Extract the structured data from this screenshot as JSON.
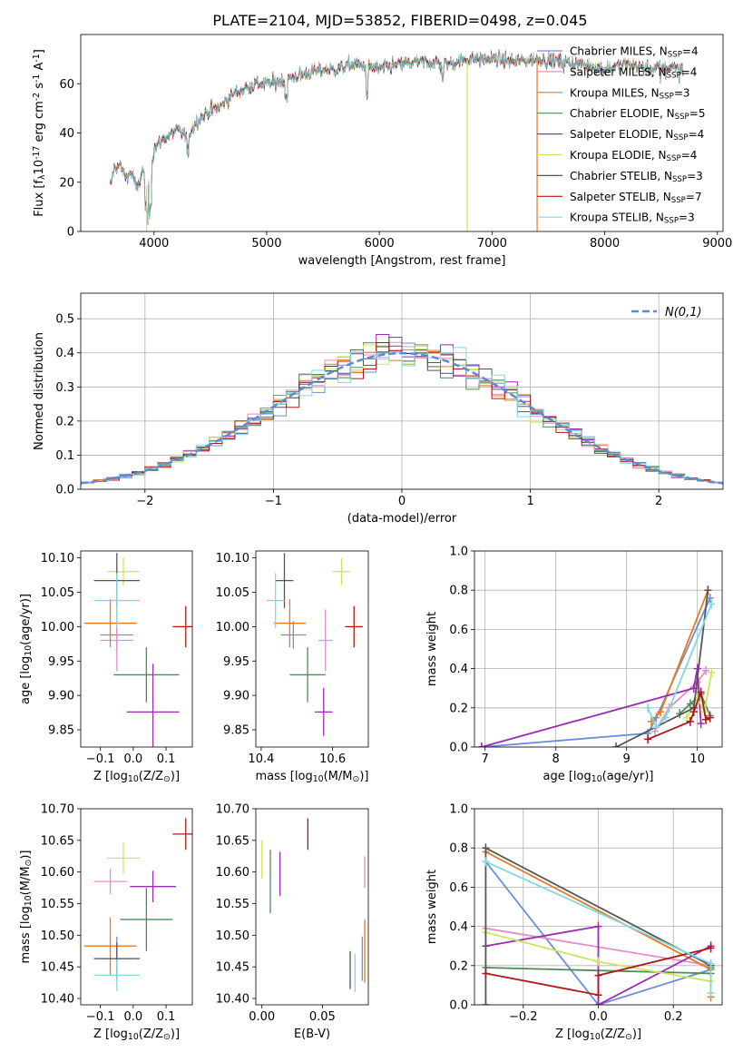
{
  "figure": {
    "title": "PLATE=2104, MJD=53852, FIBERID=0498, z=0.045"
  },
  "colors": {
    "chabrier_miles": "#6a8fdc",
    "salpeter_miles": "#e58cc9",
    "kroupa_miles": "#e8791f",
    "chabrier_elodie": "#4e8c55",
    "salpeter_elodie": "#9b2ab5",
    "kroupa_elodie": "#cce55a",
    "chabrier_stelib": "#555555",
    "salpeter_stelib": "#b01717",
    "kroupa_stelib": "#7fd9e0",
    "normal": "#5b8bd6"
  },
  "chart_data": [
    {
      "type": "line",
      "title": "PLATE=2104, MJD=53852, FIBERID=0498, z=0.045",
      "xlabel": "wavelength [Angstrom, rest frame]",
      "ylabel": "Flux [f_λ 10^-17 erg cm^-2 s^-1 A^-1]",
      "xlim": [
        3350,
        9050
      ],
      "ylim": [
        0,
        80
      ],
      "xticks": [
        4000,
        5000,
        6000,
        7000,
        8000,
        9000
      ],
      "yticks": [
        0,
        20,
        40,
        60
      ],
      "legend_position": "upper-right",
      "spectrum_envelope": {
        "x": [
          3610,
          3650,
          3700,
          3750,
          3800,
          3850,
          3900,
          3950,
          4000,
          4100,
          4200,
          4300,
          4400,
          4500,
          4600,
          4700,
          4800,
          4900,
          5000,
          5200,
          5400,
          5600,
          5800,
          6000,
          6200,
          6400,
          6600,
          6800,
          7000,
          7200,
          7400,
          7600,
          7800,
          8000,
          8200,
          8400,
          8600,
          8700
        ],
        "y": [
          18,
          26,
          27,
          22,
          24,
          17,
          25,
          16,
          34,
          38,
          41,
          39,
          46,
          49,
          51,
          56,
          58,
          60,
          60,
          62,
          65,
          66,
          68,
          66,
          68,
          69,
          68,
          70,
          70,
          69,
          70,
          69,
          68,
          66,
          68,
          66,
          67,
          66
        ]
      },
      "spikes": [
        {
          "x": 3935,
          "series": "Kroupa ELODIE"
        },
        {
          "x": 6780,
          "series": "Kroupa ELODIE"
        },
        {
          "x": 7400,
          "series": "Kroupa MILES"
        }
      ],
      "series": [
        {
          "key": "chabrier_miles",
          "label": "Chabrier MILES, N",
          "sub": "SSP",
          "tail": "=4"
        },
        {
          "key": "salpeter_miles",
          "label": "Salpeter MILES, N",
          "sub": "SSP",
          "tail": "=4"
        },
        {
          "key": "kroupa_miles",
          "label": "Kroupa MILES, N",
          "sub": "SSP",
          "tail": "=3"
        },
        {
          "key": "chabrier_elodie",
          "label": "Chabrier ELODIE, N",
          "sub": "SSP",
          "tail": "=5"
        },
        {
          "key": "salpeter_elodie",
          "label": "Salpeter ELODIE, N",
          "sub": "SSP",
          "tail": "=4"
        },
        {
          "key": "kroupa_elodie",
          "label": "Kroupa ELODIE, N",
          "sub": "SSP",
          "tail": "=4"
        },
        {
          "key": "chabrier_stelib",
          "label": "Chabrier STELIB, N",
          "sub": "SSP",
          "tail": "=3"
        },
        {
          "key": "salpeter_stelib",
          "label": "Salpeter STELIB, N",
          "sub": "SSP",
          "tail": "=7"
        },
        {
          "key": "kroupa_stelib",
          "label": "Kroupa STELIB, N",
          "sub": "SSP",
          "tail": "=3"
        }
      ]
    },
    {
      "type": "line",
      "xlabel": "(data-model)/error",
      "ylabel": "Normed distribution",
      "xlim": [
        -2.5,
        2.5
      ],
      "ylim": [
        0,
        0.575
      ],
      "xticks": [
        -2,
        -1,
        0,
        1,
        2
      ],
      "yticks": [
        0.0,
        0.1,
        0.2,
        0.3,
        0.4,
        0.5
      ],
      "grid": true,
      "legend_position": "upper-right",
      "normal_label": "N(0,1)",
      "histograms": "step histograms of the residual distribution, one per model, bin width 0.1, scattered around N(0,1)"
    },
    {
      "type": "scatter",
      "xlabel": "Z [log10(Z/Z⊙)]",
      "ylabel": "age [log10(age/yr)]",
      "xlim": [
        -0.16,
        0.18
      ],
      "ylim": [
        9.825,
        10.11
      ],
      "xticks": [
        -0.1,
        0.0,
        0.1
      ],
      "yticks": [
        9.85,
        9.9,
        9.95,
        10.0,
        10.05,
        10.1
      ],
      "points": [
        {
          "series": "chabrier_miles",
          "x": -0.05,
          "xerr": 0.05,
          "y": 9.988,
          "yerr": 0.02
        },
        {
          "series": "salpeter_miles",
          "x": -0.05,
          "xerr": 0.05,
          "y": 9.98,
          "yerr": 0.045
        },
        {
          "series": "kroupa_miles",
          "x": -0.07,
          "xerr": 0.08,
          "y": 10.005,
          "yerr": 0.035
        },
        {
          "series": "chabrier_elodie",
          "x": 0.04,
          "xerr": 0.1,
          "y": 9.93,
          "yerr": 0.04
        },
        {
          "series": "salpeter_elodie",
          "x": 0.06,
          "xerr": 0.08,
          "y": 9.876,
          "yerr": 0.07
        },
        {
          "series": "kroupa_elodie",
          "x": -0.03,
          "xerr": 0.05,
          "y": 10.08,
          "yerr": 0.02
        },
        {
          "series": "chabrier_stelib",
          "x": -0.05,
          "xerr": 0.07,
          "y": 10.067,
          "yerr": 0.04
        },
        {
          "series": "salpeter_stelib",
          "x": 0.16,
          "xerr": 0.04,
          "y": 10.0,
          "yerr": 0.03
        },
        {
          "series": "kroupa_stelib",
          "x": -0.05,
          "xerr": 0.07,
          "y": 10.038,
          "yerr": 0.04
        }
      ]
    },
    {
      "type": "scatter",
      "xlabel": "mass [log10(M/M⊙)]",
      "ylabel": "",
      "xlim": [
        10.385,
        10.7
      ],
      "ylim": [
        9.825,
        10.11
      ],
      "xticks": [
        10.4,
        10.6
      ],
      "yticks": [
        9.85,
        9.9,
        9.95,
        10.0,
        10.05,
        10.1
      ],
      "points": [
        {
          "series": "chabrier_miles",
          "x": 10.49,
          "xerr": 0.035,
          "y": 9.988,
          "yerr": 0.02
        },
        {
          "series": "salpeter_miles",
          "x": 10.58,
          "xerr": 0.02,
          "y": 9.98,
          "yerr": 0.045
        },
        {
          "series": "kroupa_miles",
          "x": 10.48,
          "xerr": 0.045,
          "y": 10.005,
          "yerr": 0.035
        },
        {
          "series": "chabrier_elodie",
          "x": 10.53,
          "xerr": 0.05,
          "y": 9.93,
          "yerr": 0.04
        },
        {
          "series": "salpeter_elodie",
          "x": 10.575,
          "xerr": 0.025,
          "y": 9.876,
          "yerr": 0.035
        },
        {
          "series": "kroupa_elodie",
          "x": 10.625,
          "xerr": 0.025,
          "y": 10.08,
          "yerr": 0.02
        },
        {
          "series": "chabrier_stelib",
          "x": 10.465,
          "xerr": 0.025,
          "y": 10.067,
          "yerr": 0.04
        },
        {
          "series": "salpeter_stelib",
          "x": 10.66,
          "xerr": 0.025,
          "y": 10.0,
          "yerr": 0.03
        },
        {
          "series": "kroupa_stelib",
          "x": 10.44,
          "xerr": 0.025,
          "y": 10.038,
          "yerr": 0.04
        }
      ]
    },
    {
      "type": "line",
      "xlabel": "age [log10(age/yr)]",
      "ylabel": "mass weight",
      "xlim": [
        6.85,
        10.35
      ],
      "ylim": [
        0,
        1.0
      ],
      "xticks": [
        7,
        8,
        9,
        10
      ],
      "yticks": [
        0.0,
        0.2,
        0.4,
        0.6,
        0.8,
        1.0
      ],
      "grid": true,
      "series": [
        {
          "key": "chabrier_miles",
          "x": [
            6.95,
            9.3,
            9.42,
            10.18
          ],
          "y": [
            0.0,
            0.07,
            0.15,
            0.76
          ]
        },
        {
          "key": "salpeter_miles",
          "x": [
            9.4,
            9.6,
            10.0,
            10.12
          ],
          "y": [
            0.08,
            0.2,
            0.33,
            0.39
          ]
        },
        {
          "key": "kroupa_miles",
          "x": [
            9.35,
            9.48,
            10.15
          ],
          "y": [
            0.13,
            0.18,
            0.8
          ]
        },
        {
          "key": "chabrier_elodie",
          "x": [
            9.75,
            9.9,
            10.05,
            10.18
          ],
          "y": [
            0.17,
            0.22,
            0.27,
            0.16
          ]
        },
        {
          "key": "salpeter_elodie",
          "x": [
            6.95,
            9.95,
            10.0,
            10.05
          ],
          "y": [
            0.0,
            0.3,
            0.4,
            0.12
          ]
        },
        {
          "key": "kroupa_elodie",
          "x": [
            9.85,
            10.0,
            10.1,
            10.2
          ],
          "y": [
            0.15,
            0.25,
            0.18,
            0.38
          ]
        },
        {
          "key": "chabrier_stelib",
          "x": [
            8.85,
            9.95,
            10.15
          ],
          "y": [
            0.0,
            0.2,
            0.8
          ]
        },
        {
          "key": "salpeter_stelib",
          "x": [
            9.3,
            9.9,
            9.95,
            10.05,
            10.12,
            10.18
          ],
          "y": [
            0.04,
            0.13,
            0.18,
            0.28,
            0.14,
            0.15
          ]
        },
        {
          "key": "kroupa_stelib",
          "x": [
            9.3,
            9.42,
            9.55,
            10.2
          ],
          "y": [
            0.2,
            0.1,
            0.15,
            0.73
          ]
        }
      ]
    },
    {
      "type": "scatter",
      "xlabel": "Z [log10(Z/Z⊙)]",
      "ylabel": "mass [log10(M/M⊙)]",
      "xlim": [
        -0.16,
        0.18
      ],
      "ylim": [
        10.39,
        10.7
      ],
      "xticks": [
        -0.1,
        0.0,
        0.1
      ],
      "yticks": [
        10.4,
        10.45,
        10.5,
        10.55,
        10.6,
        10.65,
        10.7
      ],
      "points": [
        {
          "series": "chabrier_miles",
          "x": -0.05,
          "xerr": 0.05,
          "y": 10.463,
          "yerr": 0.035
        },
        {
          "series": "salpeter_miles",
          "x": -0.07,
          "xerr": 0.05,
          "y": 10.585,
          "yerr": 0.02
        },
        {
          "series": "kroupa_miles",
          "x": -0.07,
          "xerr": 0.08,
          "y": 10.483,
          "yerr": 0.045
        },
        {
          "series": "chabrier_elodie",
          "x": 0.04,
          "xerr": 0.08,
          "y": 10.525,
          "yerr": 0.05
        },
        {
          "series": "salpeter_elodie",
          "x": 0.06,
          "xerr": 0.07,
          "y": 10.577,
          "yerr": 0.025
        },
        {
          "series": "kroupa_elodie",
          "x": -0.03,
          "xerr": 0.05,
          "y": 10.622,
          "yerr": 0.025
        },
        {
          "series": "chabrier_stelib",
          "x": -0.05,
          "xerr": 0.07,
          "y": 10.463,
          "yerr": 0.025
        },
        {
          "series": "salpeter_stelib",
          "x": 0.16,
          "xerr": 0.04,
          "y": 10.66,
          "yerr": 0.025
        },
        {
          "series": "kroupa_stelib",
          "x": -0.05,
          "xerr": 0.07,
          "y": 10.437,
          "yerr": 0.025
        }
      ]
    },
    {
      "type": "scatter",
      "xlabel": "E(B-V)",
      "ylabel": "",
      "xlim": [
        -0.005,
        0.088
      ],
      "ylim": [
        10.39,
        10.7
      ],
      "xticks": [
        0.0,
        0.05
      ],
      "yticks": [
        10.4,
        10.45,
        10.5,
        10.55,
        10.6,
        10.65,
        10.7
      ],
      "points": [
        {
          "series": "chabrier_miles",
          "x": 0.083,
          "y": 10.463,
          "yerr": 0.035
        },
        {
          "series": "salpeter_miles",
          "x": 0.085,
          "y": 10.6,
          "yerr": 0.025
        },
        {
          "series": "kroupa_miles",
          "x": 0.085,
          "y": 10.475,
          "yerr": 0.05
        },
        {
          "series": "chabrier_elodie",
          "x": 0.007,
          "y": 10.585,
          "yerr": 0.05
        },
        {
          "series": "salpeter_elodie",
          "x": 0.015,
          "y": 10.597,
          "yerr": 0.035
        },
        {
          "series": "kroupa_elodie",
          "x": 0.0,
          "y": 10.62,
          "yerr": 0.03
        },
        {
          "series": "chabrier_stelib",
          "x": 0.073,
          "y": 10.445,
          "yerr": 0.03
        },
        {
          "series": "salpeter_stelib",
          "x": 0.038,
          "y": 10.66,
          "yerr": 0.025
        },
        {
          "series": "kroupa_stelib",
          "x": 0.077,
          "y": 10.44,
          "yerr": 0.03
        }
      ]
    },
    {
      "type": "line",
      "xlabel": "Z [log10(Z/Z⊙)]",
      "ylabel": "mass weight",
      "xlim": [
        -0.33,
        0.33
      ],
      "ylim": [
        0,
        1.0
      ],
      "xticks": [
        -0.2,
        0.0,
        0.2
      ],
      "yticks": [
        0.0,
        0.2,
        0.4,
        0.6,
        0.8,
        1.0
      ],
      "grid": true,
      "series": [
        {
          "key": "chabrier_miles",
          "x": [
            -0.3,
            0.0,
            0.3
          ],
          "y": [
            0.73,
            0.0,
            0.18
          ]
        },
        {
          "key": "salpeter_miles",
          "x": [
            -0.3,
            0.3
          ],
          "y": [
            0.39,
            0.2
          ]
        },
        {
          "key": "kroupa_miles",
          "x": [
            -0.3,
            0.3,
            0.3
          ],
          "y": [
            0.78,
            0.18,
            0.04
          ]
        },
        {
          "key": "chabrier_elodie",
          "x": [
            -0.3,
            0.3,
            0.3
          ],
          "y": [
            0.19,
            0.16,
            0.19
          ]
        },
        {
          "key": "salpeter_elodie",
          "x": [
            -0.3,
            0.0,
            0.0,
            0.3
          ],
          "y": [
            0.3,
            0.4,
            0.0,
            0.3
          ]
        },
        {
          "key": "kroupa_elodie",
          "x": [
            -0.3,
            0.0,
            0.3
          ],
          "y": [
            0.37,
            0.22,
            0.12
          ]
        },
        {
          "key": "chabrier_stelib",
          "x": [
            -0.3,
            -0.3,
            0.3
          ],
          "y": [
            0.0,
            0.8,
            0.2
          ]
        },
        {
          "key": "salpeter_stelib",
          "x": [
            -0.3,
            0.0,
            0.0,
            0.3
          ],
          "y": [
            0.16,
            0.05,
            0.15,
            0.29
          ]
        },
        {
          "key": "kroupa_stelib",
          "x": [
            -0.3,
            0.3,
            0.3
          ],
          "y": [
            0.73,
            0.21,
            0.06
          ]
        }
      ]
    }
  ]
}
